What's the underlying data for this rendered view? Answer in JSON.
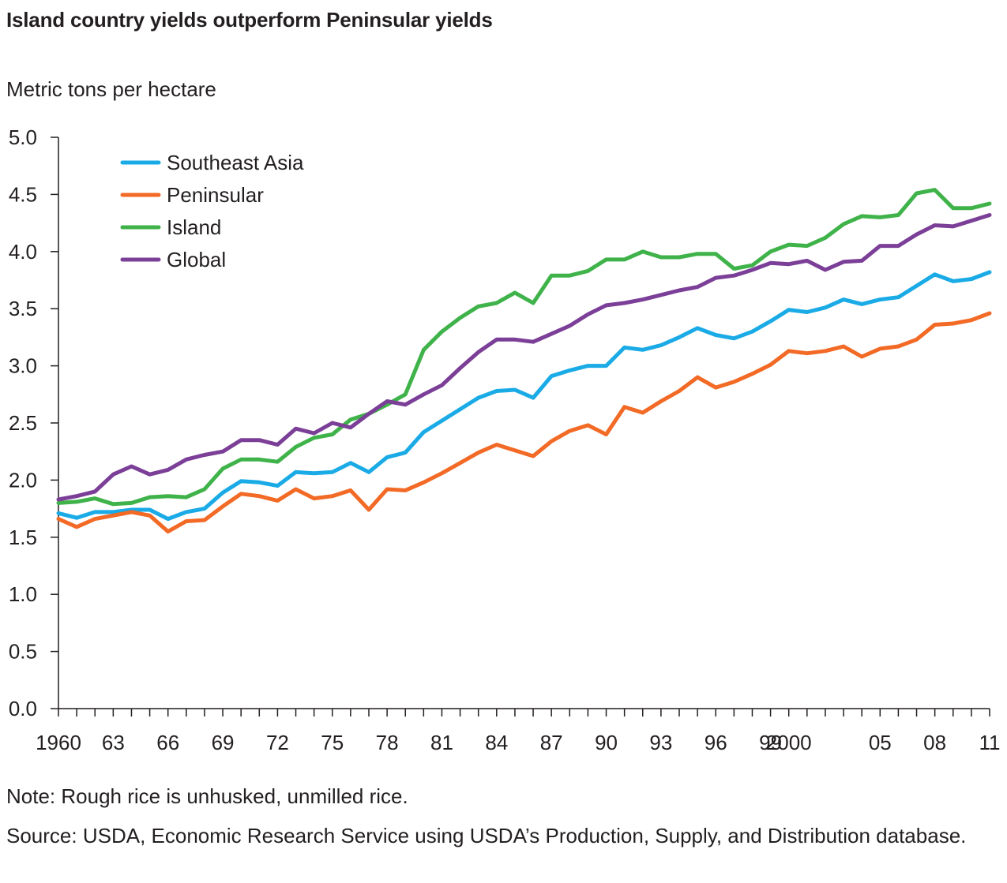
{
  "title": "Island country yields outperform Peninsular yields",
  "note": "Note:  Rough rice  is unhusked, unmilled rice.",
  "source": "Source:  USDA, Economic Research Service using USDA’s Production, Supply, and Distribution database.",
  "chart_data": {
    "type": "line",
    "title": "Island country yields outperform Peninsular yields",
    "ylabel": "Metric tons per hectare",
    "xlabel": "",
    "ylim": [
      0,
      5
    ],
    "yticks": [
      "0.0",
      "0.5",
      "1.0",
      "1.5",
      "2.0",
      "2.5",
      "3.0",
      "3.5",
      "4.0",
      "4.5",
      "5.0"
    ],
    "xlim": [
      1960,
      2011
    ],
    "xtick_years": [
      1960,
      1963,
      1966,
      1969,
      1972,
      1975,
      1978,
      1981,
      1984,
      1987,
      1990,
      1993,
      1996,
      1999,
      2000,
      2005,
      2008,
      2011
    ],
    "xtick_labels": [
      "1960",
      "63",
      "66",
      "69",
      "72",
      "75",
      "78",
      "81",
      "84",
      "87",
      "90",
      "93",
      "96",
      "99",
      "2000",
      "05",
      "08",
      "11"
    ],
    "legend_position": "top-left",
    "grid": false,
    "x": [
      1960,
      1961,
      1962,
      1963,
      1964,
      1965,
      1966,
      1967,
      1968,
      1969,
      1970,
      1971,
      1972,
      1973,
      1974,
      1975,
      1976,
      1977,
      1978,
      1979,
      1980,
      1981,
      1982,
      1983,
      1984,
      1985,
      1986,
      1987,
      1988,
      1989,
      1990,
      1991,
      1992,
      1993,
      1994,
      1995,
      1996,
      1997,
      1998,
      1999,
      2000,
      2001,
      2002,
      2003,
      2004,
      2005,
      2006,
      2007,
      2008,
      2009,
      2010,
      2011
    ],
    "series": [
      {
        "name": "Southeast Asia",
        "color": "#1aabe6",
        "values": [
          1.71,
          1.67,
          1.72,
          1.72,
          1.74,
          1.74,
          1.66,
          1.72,
          1.75,
          1.89,
          1.99,
          1.98,
          1.95,
          2.07,
          2.06,
          2.07,
          2.15,
          2.07,
          2.2,
          2.24,
          2.42,
          2.52,
          2.62,
          2.72,
          2.78,
          2.79,
          2.72,
          2.91,
          2.96,
          3.0,
          3.0,
          3.16,
          3.14,
          3.18,
          3.25,
          3.33,
          3.27,
          3.24,
          3.3,
          3.39,
          3.49,
          3.47,
          3.51,
          3.58,
          3.54,
          3.58,
          3.6,
          3.7,
          3.8,
          3.74,
          3.76,
          3.82
        ]
      },
      {
        "name": "Peninsular",
        "color": "#f26a25",
        "values": [
          1.66,
          1.59,
          1.66,
          1.69,
          1.72,
          1.69,
          1.55,
          1.64,
          1.65,
          1.77,
          1.88,
          1.86,
          1.82,
          1.92,
          1.84,
          1.86,
          1.91,
          1.74,
          1.92,
          1.91,
          1.98,
          2.06,
          2.15,
          2.24,
          2.31,
          2.26,
          2.21,
          2.34,
          2.43,
          2.48,
          2.4,
          2.64,
          2.59,
          2.69,
          2.78,
          2.9,
          2.81,
          2.86,
          2.93,
          3.01,
          3.13,
          3.11,
          3.13,
          3.17,
          3.08,
          3.15,
          3.17,
          3.23,
          3.36,
          3.37,
          3.4,
          3.46
        ]
      },
      {
        "name": "Island",
        "color": "#3fb34a",
        "values": [
          1.8,
          1.81,
          1.84,
          1.79,
          1.8,
          1.85,
          1.86,
          1.85,
          1.92,
          2.1,
          2.18,
          2.18,
          2.16,
          2.29,
          2.37,
          2.4,
          2.53,
          2.58,
          2.66,
          2.75,
          3.14,
          3.3,
          3.42,
          3.52,
          3.55,
          3.64,
          3.55,
          3.79,
          3.79,
          3.83,
          3.93,
          3.93,
          4.0,
          3.95,
          3.95,
          3.98,
          3.98,
          3.85,
          3.88,
          4.0,
          4.06,
          4.05,
          4.12,
          4.24,
          4.31,
          4.3,
          4.32,
          4.51,
          4.54,
          4.38,
          4.38,
          4.42
        ]
      },
      {
        "name": "Global",
        "color": "#7b3f98",
        "values": [
          1.83,
          1.86,
          1.9,
          2.05,
          2.12,
          2.05,
          2.09,
          2.18,
          2.22,
          2.25,
          2.35,
          2.35,
          2.31,
          2.45,
          2.41,
          2.5,
          2.46,
          2.58,
          2.69,
          2.66,
          2.75,
          2.83,
          2.98,
          3.12,
          3.23,
          3.23,
          3.21,
          3.28,
          3.35,
          3.45,
          3.53,
          3.55,
          3.58,
          3.62,
          3.66,
          3.69,
          3.77,
          3.79,
          3.84,
          3.9,
          3.89,
          3.92,
          3.84,
          3.91,
          3.92,
          4.05,
          4.05,
          4.15,
          4.23,
          4.22,
          4.27,
          4.32
        ]
      }
    ]
  }
}
